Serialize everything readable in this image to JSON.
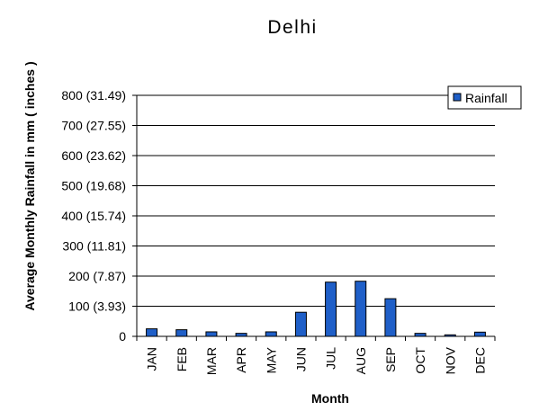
{
  "chart_data": {
    "type": "bar",
    "title": "Delhi",
    "xlabel": "Month",
    "ylabel": "Average Monthly Rainfall in mm ( inches )",
    "categories": [
      "JAN",
      "FEB",
      "MAR",
      "APR",
      "MAY",
      "JUN",
      "JUL",
      "AUG",
      "SEP",
      "OCT",
      "NOV",
      "DEC"
    ],
    "series": [
      {
        "name": "Rainfall",
        "values": [
          25,
          22,
          15,
          10,
          15,
          80,
          180,
          183,
          125,
          10,
          5,
          14
        ]
      }
    ],
    "ylim": [
      0,
      800
    ],
    "yticks": [
      0,
      100,
      200,
      300,
      400,
      500,
      600,
      700,
      800
    ],
    "ytick_labels": [
      "0",
      "100 (3.93)",
      "200 (7.87)",
      "300 (11.81)",
      "400 (15.74)",
      "500 (19.68)",
      "600 (23.62)",
      "700 (27.55)",
      "800 (31.49)"
    ],
    "grid": true,
    "legend": "top-right",
    "colors": {
      "bar": "#1f5fc8",
      "bar_edge": "#000000",
      "grid": "#000000"
    }
  }
}
